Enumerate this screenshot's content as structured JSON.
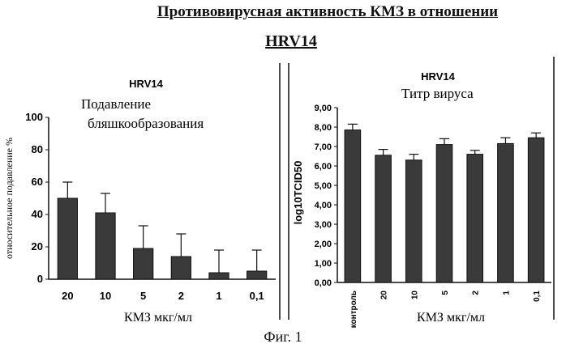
{
  "page": {
    "title_line1": "Противовирусная активность КМЗ в отношении",
    "title_line2": "HRV14",
    "figure_caption": "Фиг. 1"
  },
  "chart_data": [
    {
      "type": "bar",
      "panel_title": "HRV14",
      "subtitle": "Подавление бляшкообразования",
      "subtitle_lines": [
        "Подавление",
        "бляшкообразования"
      ],
      "xlabel": "КМЗ мкг/мл",
      "ylabel": "относительное подавление %",
      "categories": [
        "20",
        "10",
        "5",
        "2",
        "1",
        "0,1"
      ],
      "values": [
        50,
        41,
        19,
        14,
        4,
        5
      ],
      "errors": [
        10,
        12,
        14,
        14,
        14,
        13
      ],
      "ylim": [
        0,
        100
      ],
      "yticks": [
        "0",
        "20",
        "40",
        "60",
        "80",
        "100"
      ],
      "bar_color": "#3a3a3a"
    },
    {
      "type": "bar",
      "panel_title": "HRV14",
      "subtitle": "Титр вируса",
      "xlabel": "КМЗ мкг/мл",
      "ylabel": "log10TCID50",
      "categories": [
        "контроль",
        "20",
        "10",
        "5",
        "2",
        "1",
        "0,1"
      ],
      "values": [
        7.85,
        6.55,
        6.3,
        7.1,
        6.6,
        7.15,
        7.45
      ],
      "errors": [
        0.3,
        0.3,
        0.3,
        0.3,
        0.2,
        0.3,
        0.25
      ],
      "ylim": [
        0,
        9
      ],
      "yticks": [
        "0,00",
        "1,00",
        "2,00",
        "3,00",
        "4,00",
        "5,00",
        "6,00",
        "7,00",
        "8,00",
        "9,00"
      ],
      "bar_color": "#3a3a3a"
    }
  ]
}
